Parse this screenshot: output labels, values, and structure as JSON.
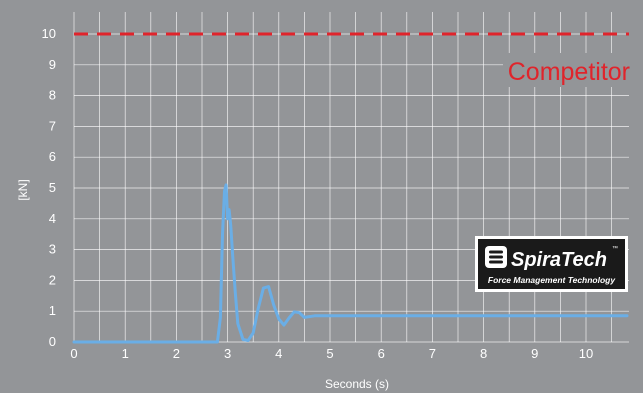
{
  "chart_data": {
    "type": "line",
    "xlabel": "Seconds (s)",
    "ylabel": "[kN]",
    "xlim": [
      0,
      10.8
    ],
    "ylim": [
      0,
      10
    ],
    "x_ticks": [
      0,
      1,
      2,
      3,
      4,
      5,
      6,
      7,
      8,
      9,
      10
    ],
    "y_ticks": [
      0,
      1,
      2,
      3,
      4,
      5,
      6,
      7,
      8,
      9,
      10
    ],
    "grid": true,
    "reference_line": {
      "label": "Competitor",
      "value": 10,
      "color": "#e0242b",
      "style": "dashed"
    },
    "series": [
      {
        "color": "#6aaee6",
        "x": [
          0,
          2.8,
          2.86,
          2.9,
          2.94,
          2.97,
          3.0,
          3.03,
          3.06,
          3.1,
          3.15,
          3.2,
          3.3,
          3.4,
          3.5,
          3.6,
          3.7,
          3.8,
          3.9,
          4.0,
          4.1,
          4.2,
          4.3,
          4.4,
          4.5,
          4.7,
          5.0,
          6,
          7,
          8,
          9,
          10,
          10.8
        ],
        "y": [
          0,
          0,
          0.8,
          3.5,
          4.9,
          5.1,
          4.0,
          4.3,
          3.8,
          2.8,
          1.6,
          0.6,
          0.08,
          0.05,
          0.3,
          1.1,
          1.75,
          1.8,
          1.2,
          0.75,
          0.55,
          0.78,
          0.98,
          0.95,
          0.8,
          0.85,
          0.85,
          0.85,
          0.85,
          0.85,
          0.85,
          0.85,
          0.85
        ]
      }
    ]
  },
  "logo": {
    "name": "SpiraTech",
    "trademark": "™",
    "tagline": "Force Management Technology"
  }
}
